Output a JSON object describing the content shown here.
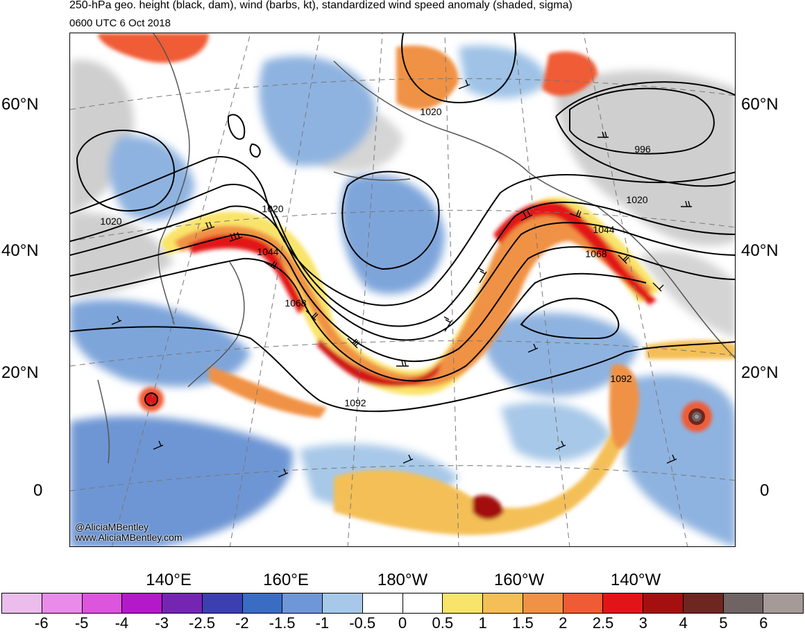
{
  "header": {
    "title": "250-hPa geo. height (black, dam), wind (barbs, kt), standardized wind speed anomaly (shaded, sigma)",
    "valid_time": "0600 UTC 6 Oct 2018"
  },
  "map": {
    "lat_labels": [
      "60°N",
      "40°N",
      "20°N",
      "0"
    ],
    "lon_labels": [
      "140°E",
      "160°E",
      "180°W",
      "160°W",
      "140°W"
    ],
    "contour_labels": [
      "1020",
      "996",
      "1020",
      "1020",
      "1020",
      "1044",
      "1044",
      "1068",
      "1068",
      "1092",
      "1092"
    ]
  },
  "credits": {
    "handle": "@AliciaMBentley",
    "site": "www.AliciaMBentley.com"
  },
  "colorbar": {
    "ticks": [
      "-6",
      "-5",
      "-4",
      "-3",
      "-2.5",
      "-2",
      "-1.5",
      "-1",
      "-0.5",
      "0",
      "0.5",
      "1",
      "1.5",
      "2",
      "2.5",
      "3",
      "4",
      "5",
      "6"
    ],
    "colors": [
      "#ecbcec",
      "#e98be8",
      "#dc55dc",
      "#b319c9",
      "#7426b2",
      "#3c3fb0",
      "#3a6cc4",
      "#6f96d6",
      "#a7c8e8",
      "#ffffff",
      "#ffffff",
      "#f9e46b",
      "#f4bf57",
      "#f09245",
      "#ef5b34",
      "#e21417",
      "#a40f0f",
      "#6e2621",
      "#6f6363",
      "#a69a99"
    ]
  }
}
